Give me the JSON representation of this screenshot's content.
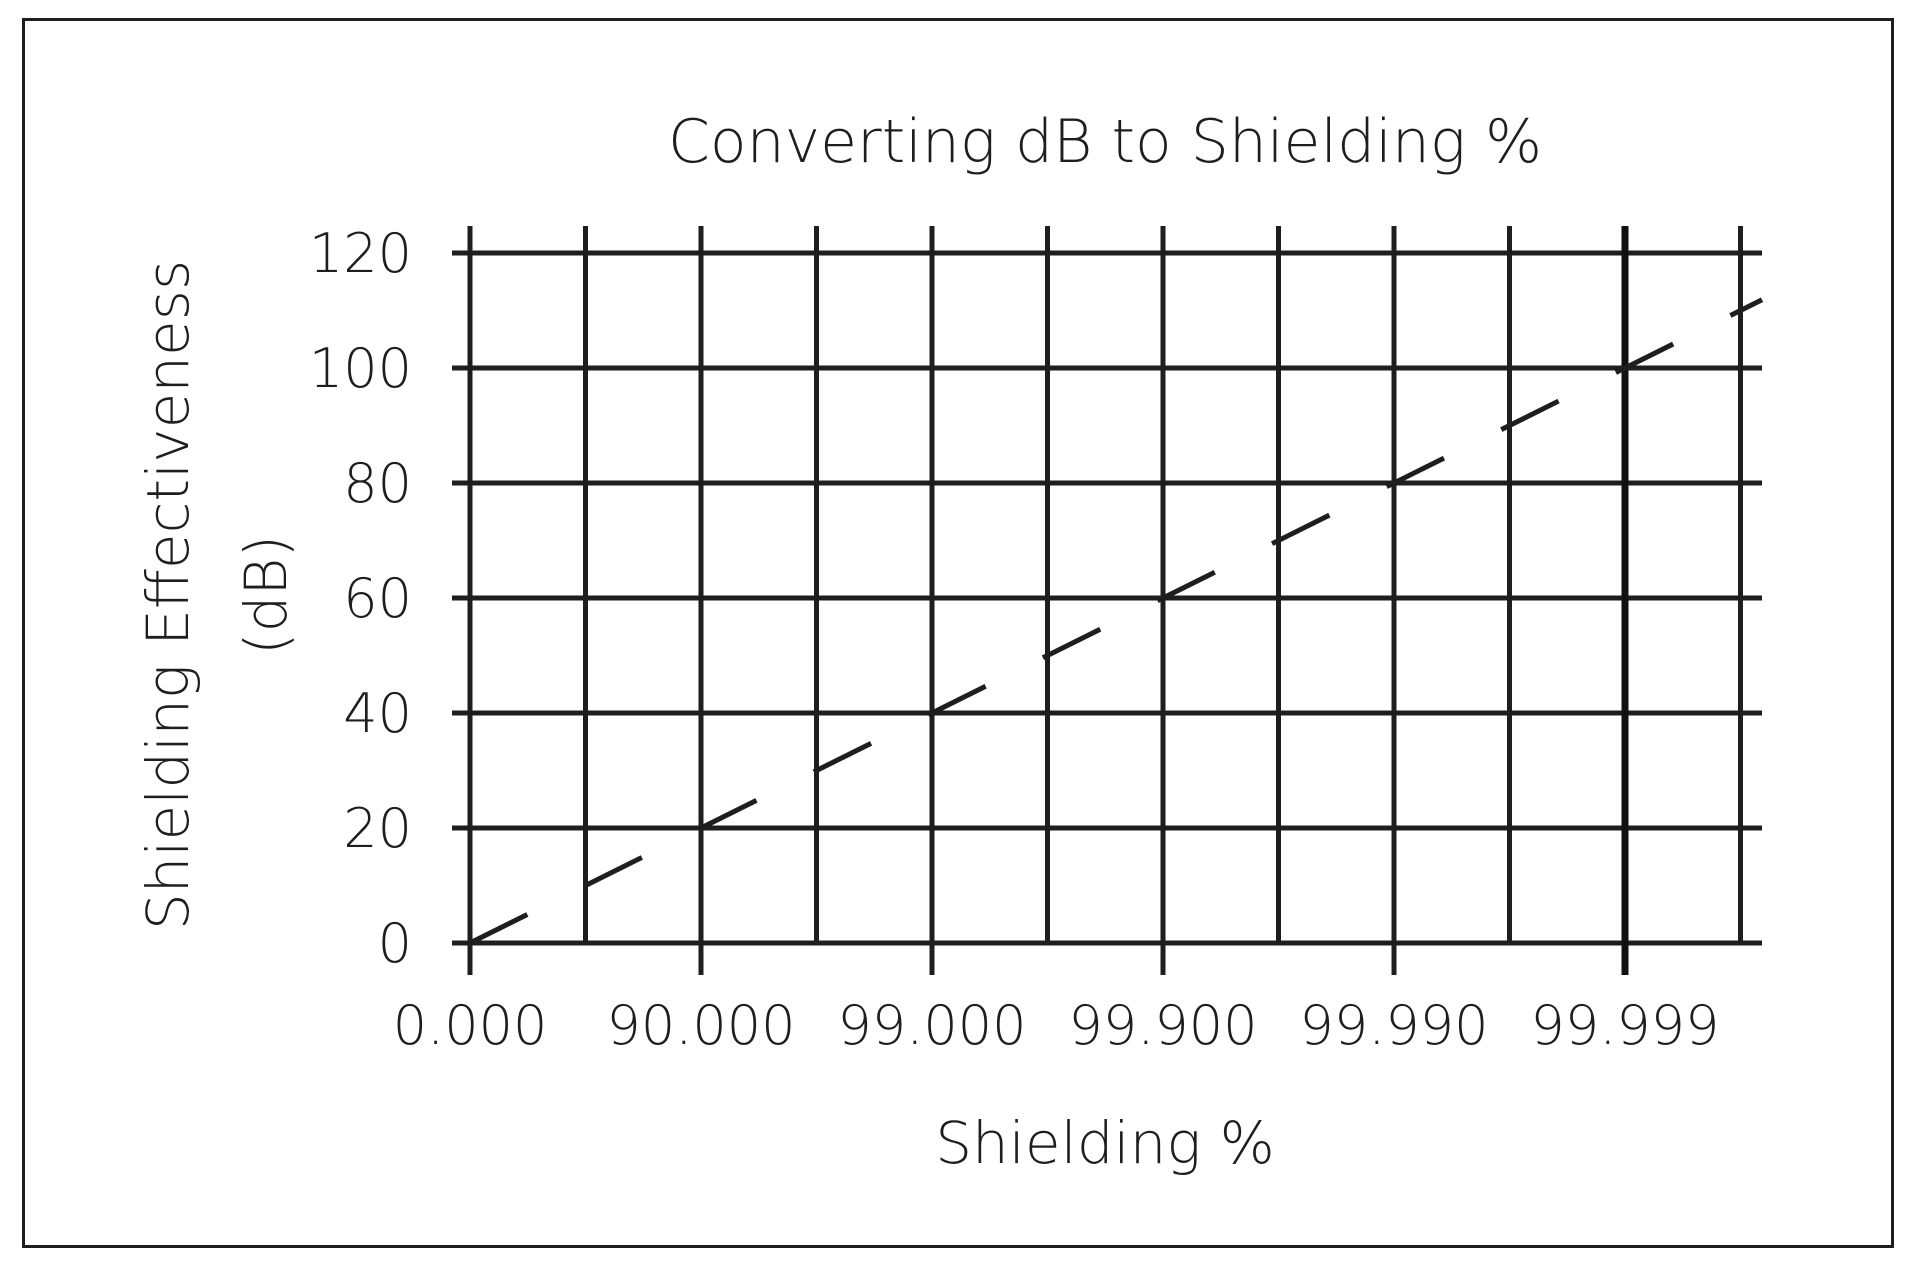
{
  "chart_data": {
    "type": "line",
    "title": "Converting dB to Shielding %",
    "xlabel": "Shielding %",
    "ylabel": "Shielding Effectiveness (dB)",
    "ylabel_lines": [
      "Shielding Effectiveness",
      "(dB)"
    ],
    "x_tick_labels": [
      "0.000",
      "90.000",
      "99.000",
      "99.900",
      "99.990",
      "99.999"
    ],
    "y_ticks": [
      0,
      20,
      40,
      60,
      80,
      100,
      120
    ],
    "y_tick_labels": [
      "0",
      "20",
      "40",
      "60",
      "80",
      "100",
      "120"
    ],
    "ylim": [
      0,
      120
    ],
    "grid": true,
    "series": [
      {
        "style": "dashed",
        "color": "#1e1e1e",
        "x_labels": [
          "0.000",
          "90.000",
          "99.000",
          "99.900",
          "99.990",
          "99.999"
        ],
        "values": [
          0,
          20,
          40,
          60,
          80,
          100
        ]
      }
    ]
  }
}
